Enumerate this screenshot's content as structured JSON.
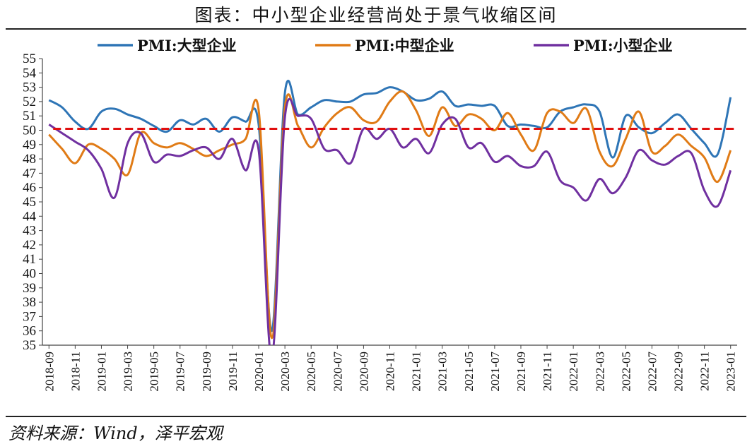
{
  "title": "图表：中小型企业经营尚处于景气收缩区间",
  "source": "资料来源：Wind，泽平宏观",
  "chart_data": {
    "type": "line",
    "ylim": [
      35,
      55
    ],
    "y_ticks": [
      35,
      36,
      37,
      38,
      39,
      40,
      41,
      42,
      43,
      44,
      45,
      46,
      47,
      48,
      49,
      50,
      51,
      52,
      53,
      54,
      55
    ],
    "x": [
      "2018-09",
      "2018-10",
      "2018-11",
      "2018-12",
      "2019-01",
      "2019-02",
      "2019-03",
      "2019-04",
      "2019-05",
      "2019-06",
      "2019-07",
      "2019-08",
      "2019-09",
      "2019-10",
      "2019-11",
      "2019-12",
      "2020-01",
      "2020-02",
      "2020-03",
      "2020-04",
      "2020-05",
      "2020-06",
      "2020-07",
      "2020-08",
      "2020-09",
      "2020-10",
      "2020-11",
      "2020-12",
      "2021-01",
      "2021-02",
      "2021-03",
      "2021-04",
      "2021-05",
      "2021-06",
      "2021-07",
      "2021-08",
      "2021-09",
      "2021-10",
      "2021-11",
      "2021-12",
      "2022-01",
      "2022-02",
      "2022-03",
      "2022-04",
      "2022-05",
      "2022-06",
      "2022-07",
      "2022-08",
      "2022-09",
      "2022-10",
      "2022-11",
      "2022-12",
      "2023-01"
    ],
    "x_tick_labels": [
      "2018-09",
      "2018-11",
      "2019-01",
      "2019-03",
      "2019-05",
      "2019-07",
      "2019-09",
      "2019-11",
      "2020-01",
      "2020-03",
      "2020-05",
      "2020-07",
      "2020-09",
      "2020-11",
      "2021-01",
      "2021-03",
      "2021-05",
      "2021-07",
      "2021-09",
      "2021-11",
      "2022-01",
      "2022-03",
      "2022-05",
      "2022-07",
      "2022-09",
      "2022-11",
      "2023-01"
    ],
    "series": [
      {
        "name": "PMI:大型企业",
        "color": "#2e75b6",
        "values": [
          52.1,
          51.6,
          50.6,
          50.1,
          51.3,
          51.5,
          51.1,
          50.8,
          50.3,
          49.9,
          50.7,
          50.4,
          50.8,
          49.9,
          50.9,
          50.6,
          50.4,
          36.0,
          52.6,
          51.1,
          51.6,
          52.1,
          52.0,
          52.0,
          52.5,
          52.6,
          53.0,
          52.7,
          52.1,
          52.2,
          52.7,
          51.7,
          51.8,
          51.7,
          51.7,
          50.3,
          50.4,
          50.3,
          50.2,
          51.3,
          51.6,
          51.8,
          51.3,
          48.1,
          51.0,
          50.2,
          49.8,
          50.5,
          51.1,
          50.1,
          49.1,
          48.3,
          52.3
        ]
      },
      {
        "name": "PMI:中型企业",
        "color": "#e07b16",
        "values": [
          49.7,
          48.7,
          47.7,
          49.0,
          48.7,
          48.0,
          46.9,
          49.8,
          49.1,
          48.8,
          49.1,
          48.7,
          48.2,
          48.6,
          49.0,
          49.4,
          51.4,
          35.5,
          51.6,
          50.3,
          48.8,
          50.2,
          51.2,
          51.6,
          50.7,
          50.6,
          52.0,
          52.7,
          51.4,
          49.6,
          51.6,
          50.3,
          51.1,
          50.8,
          50.0,
          51.2,
          49.7,
          48.6,
          51.2,
          51.3,
          50.5,
          51.5,
          48.5,
          47.5,
          49.4,
          51.3,
          48.5,
          48.9,
          49.7,
          48.9,
          48.1,
          46.4,
          48.6
        ]
      },
      {
        "name": "PMI:小型企业",
        "color": "#7030a0",
        "values": [
          50.4,
          49.8,
          49.2,
          48.6,
          47.3,
          45.3,
          49.1,
          49.8,
          47.8,
          48.3,
          48.2,
          48.6,
          48.8,
          48.0,
          49.4,
          47.2,
          48.6,
          34.1,
          50.9,
          51.0,
          50.8,
          48.7,
          48.6,
          47.7,
          50.1,
          49.4,
          50.1,
          48.8,
          49.4,
          48.4,
          50.4,
          50.8,
          48.8,
          49.1,
          47.8,
          48.2,
          47.5,
          47.5,
          48.5,
          46.5,
          46.0,
          45.1,
          46.6,
          45.6,
          46.7,
          48.6,
          47.9,
          47.6,
          48.2,
          48.4,
          45.8,
          44.7,
          47.2
        ]
      }
    ],
    "reference_line": {
      "value": 50.1,
      "color": "#e01010",
      "style": "dashed"
    },
    "legend_position": "top",
    "grid": false
  }
}
